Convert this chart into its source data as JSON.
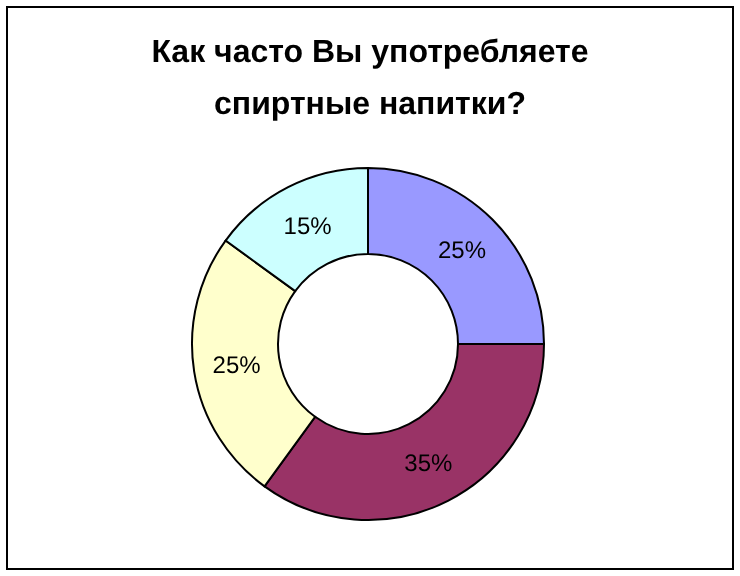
{
  "chart_data": {
    "type": "donut",
    "title": "Как часто Вы употребляете спиртные напитки?",
    "categories": [
      null,
      null,
      null,
      null
    ],
    "values": [
      25,
      35,
      25,
      15
    ],
    "colors": [
      "#9999ff",
      "#993366",
      "#ffffcc",
      "#ccffff"
    ],
    "value_labels": [
      "25%",
      "35%",
      "25%",
      "15%"
    ]
  }
}
